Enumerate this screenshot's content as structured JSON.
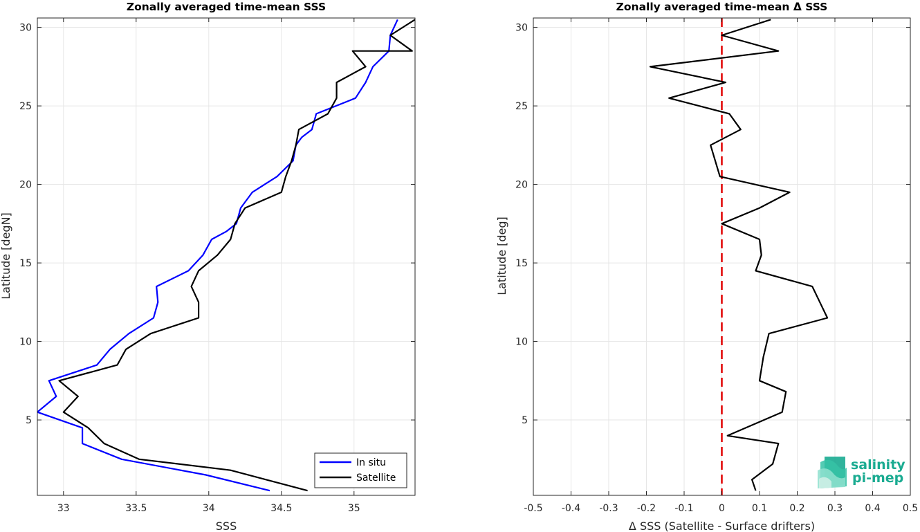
{
  "chart_data": [
    {
      "type": "line",
      "title": "Zonally averaged time-mean SSS",
      "xlabel": "SSS",
      "ylabel": "Latitude [degN]",
      "xlim": [
        32.82,
        35.42
      ],
      "ylim": [
        0.2,
        30.6
      ],
      "xticks": [
        33,
        33.5,
        34,
        34.5,
        35
      ],
      "xtick_labels": [
        "33",
        "33.5",
        "34",
        "34.5",
        "35"
      ],
      "yticks": [
        5,
        10,
        15,
        20,
        25,
        30
      ],
      "ytick_labels": [
        "5",
        "10",
        "15",
        "20",
        "25",
        "30"
      ],
      "grid": true,
      "legend_position": "bottom-right",
      "series": [
        {
          "name": "In situ",
          "color": "#0000ff",
          "x": [
            34.42,
            33.98,
            33.4,
            33.13,
            33.13,
            32.82,
            32.95,
            32.9,
            33.23,
            33.32,
            33.45,
            33.62,
            33.65,
            33.64,
            33.86,
            33.96,
            34.02,
            34.12,
            34.19,
            34.22,
            34.3,
            34.47,
            34.58,
            34.6,
            34.64,
            34.71,
            34.74,
            35.01,
            35.08,
            35.13,
            35.24,
            35.25,
            35.3
          ],
          "y": [
            0.5,
            1.5,
            2.5,
            3.5,
            4.5,
            5.5,
            6.5,
            7.5,
            8.5,
            9.5,
            10.5,
            11.5,
            12.5,
            13.5,
            14.5,
            15.5,
            16.5,
            17.0,
            17.5,
            18.5,
            19.5,
            20.5,
            21.5,
            22.5,
            23.0,
            23.5,
            24.5,
            25.5,
            26.5,
            27.5,
            28.5,
            29.5,
            30.5
          ]
        },
        {
          "name": "Satellite",
          "color": "#000000",
          "x": [
            34.68,
            34.15,
            33.52,
            33.28,
            33.17,
            33.0,
            33.1,
            32.97,
            33.37,
            33.43,
            33.6,
            33.93,
            33.93,
            33.88,
            33.93,
            34.06,
            34.15,
            34.18,
            34.25,
            34.5,
            34.53,
            34.57,
            34.6,
            34.62,
            34.82,
            34.88,
            34.88,
            35.08,
            34.99,
            35.4,
            35.25,
            35.42
          ],
          "y": [
            0.5,
            1.8,
            2.5,
            3.5,
            4.5,
            5.5,
            6.5,
            7.5,
            8.5,
            9.5,
            10.5,
            11.5,
            12.5,
            13.5,
            14.5,
            15.5,
            16.5,
            17.5,
            18.5,
            19.5,
            20.5,
            21.5,
            22.5,
            23.5,
            24.5,
            25.5,
            26.5,
            27.5,
            28.5,
            28.5,
            29.5,
            30.5
          ]
        }
      ]
    },
    {
      "type": "line",
      "title": "Zonally averaged time-mean Δ SSS",
      "xlabel": "Δ SSS (Satellite - Surface drifters)",
      "ylabel": "Latitude [deg]",
      "xlim": [
        -0.5,
        0.5
      ],
      "ylim": [
        0.2,
        30.6
      ],
      "xticks": [
        -0.5,
        -0.4,
        -0.3,
        -0.2,
        -0.1,
        0,
        0.1,
        0.2,
        0.3,
        0.4,
        0.5
      ],
      "xtick_labels": [
        "-0.5",
        "-0.4",
        "-0.3",
        "-0.2",
        "-0.1",
        "0",
        "0.1",
        "0.2",
        "0.3",
        "0.4",
        "0.5"
      ],
      "yticks": [
        5,
        10,
        15,
        20,
        25,
        30
      ],
      "ytick_labels": [
        "5",
        "10",
        "15",
        "20",
        "25",
        "30"
      ],
      "grid": true,
      "reference_line": {
        "x": 0,
        "color": "#e00000",
        "style": "dashed"
      },
      "series": [
        {
          "color": "#000000",
          "x": [
            0.09,
            0.08,
            0.135,
            0.15,
            0.015,
            0.16,
            0.17,
            0.1,
            0.11,
            0.125,
            0.28,
            0.26,
            0.24,
            0.09,
            0.105,
            0.1,
            0.0,
            0.1,
            0.18,
            -0.005,
            -0.03,
            0.05,
            0.02,
            -0.14,
            0.01,
            -0.19,
            0.15,
            0.0,
            0.13
          ],
          "y": [
            0.5,
            1.2,
            2.2,
            3.5,
            4.0,
            5.5,
            6.8,
            7.5,
            9.0,
            10.5,
            11.5,
            12.5,
            13.5,
            14.5,
            15.5,
            16.5,
            17.5,
            18.5,
            19.5,
            20.5,
            22.5,
            23.5,
            24.5,
            25.5,
            26.5,
            27.5,
            28.5,
            29.5,
            30.5
          ]
        }
      ]
    }
  ],
  "legend": {
    "items": [
      "In situ",
      "Satellite"
    ]
  },
  "logo": {
    "line1": "salinity",
    "line2": "pi-mep",
    "color": "#1aab91"
  }
}
